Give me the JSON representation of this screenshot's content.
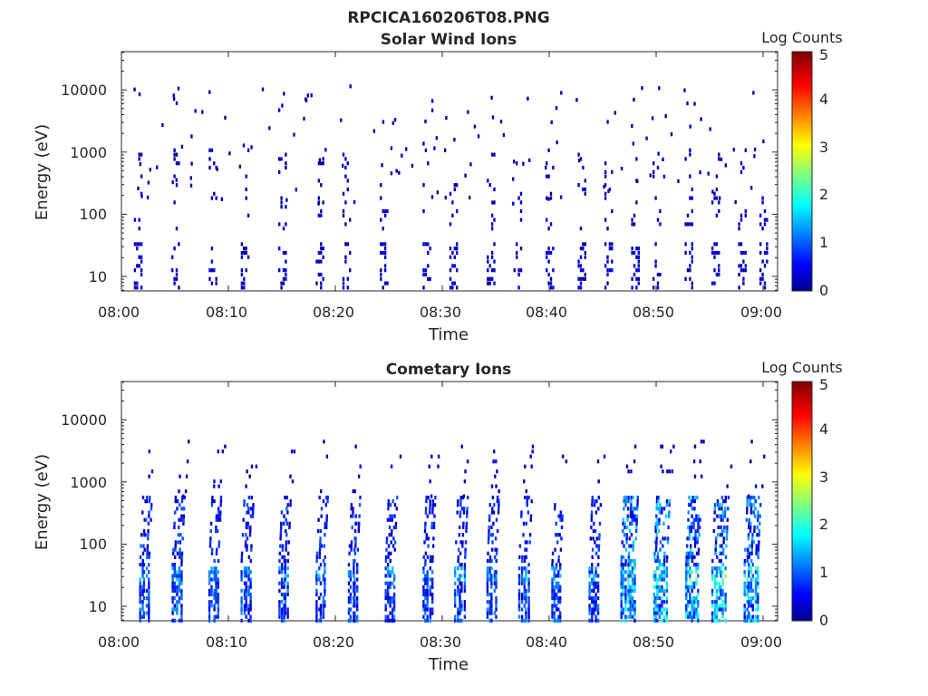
{
  "figure": {
    "title": "RPCICA160206T08.PNG"
  },
  "chart_data": [
    {
      "type": "heatmap",
      "title": "Solar Wind Ions",
      "xlabel": "Time",
      "ylabel": "Energy (eV)",
      "x_ticks": [
        "08:00",
        "08:10",
        "08:20",
        "08:30",
        "08:40",
        "08:50",
        "09:00"
      ],
      "y_ticks": [
        "10",
        "100",
        "1000",
        "10000"
      ],
      "ylim_ev": [
        6,
        45000
      ],
      "xlim": [
        "08:00",
        "09:01"
      ],
      "y_scale": "log",
      "colorbar": {
        "label": "Log Counts",
        "ticks": [
          "0",
          "1",
          "2",
          "3",
          "4",
          "5"
        ],
        "range": [
          0,
          5
        ],
        "colormap": "jet"
      },
      "activity_note_minutes": [
        1.5,
        5,
        8.5,
        11.5,
        15,
        18.5,
        21,
        24.5,
        28.5,
        31,
        34.5,
        37,
        40,
        43,
        45.5,
        48,
        50,
        53,
        55.5,
        58,
        60
      ]
    },
    {
      "type": "heatmap",
      "title": "Cometary Ions",
      "xlabel": "Time",
      "ylabel": "Energy (eV)",
      "x_ticks": [
        "08:00",
        "08:10",
        "08:20",
        "08:30",
        "08:40",
        "08:50",
        "09:00"
      ],
      "y_ticks": [
        "10",
        "100",
        "1000",
        "10000"
      ],
      "ylim_ev": [
        6,
        45000
      ],
      "xlim": [
        "08:00",
        "09:01"
      ],
      "y_scale": "log",
      "colorbar": {
        "label": "Log Counts",
        "ticks": [
          "0",
          "1",
          "2",
          "3",
          "4",
          "5"
        ],
        "range": [
          0,
          5
        ],
        "colormap": "jet"
      },
      "burst_minutes": [
        2,
        5,
        8.5,
        11.5,
        15,
        18.5,
        21.5,
        25,
        28.5,
        31.5,
        34.5,
        37.5,
        40.5,
        44,
        47,
        50,
        53,
        55.5,
        58.5
      ]
    }
  ]
}
